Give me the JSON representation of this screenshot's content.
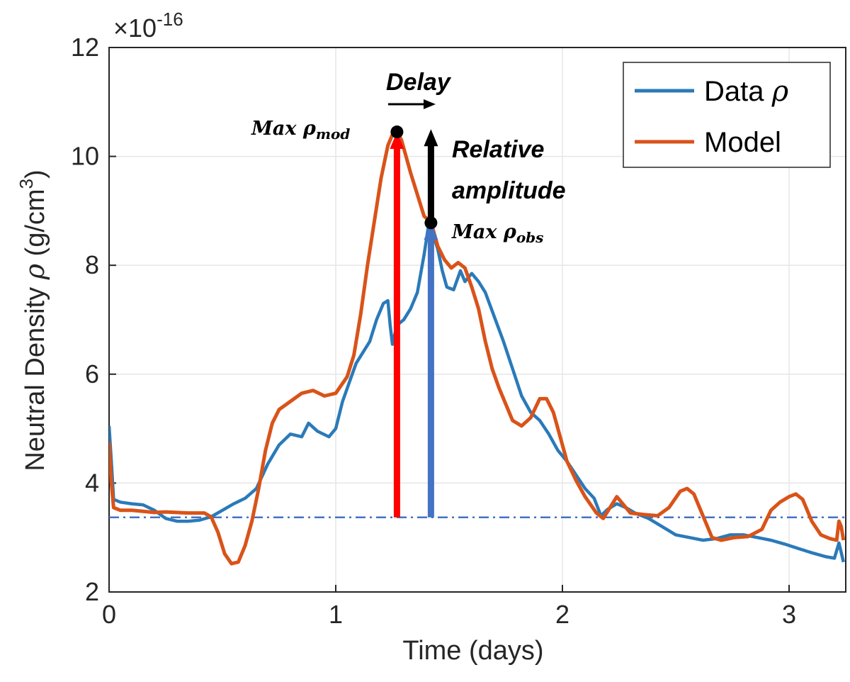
{
  "chart_data": {
    "type": "line",
    "title": "",
    "xlabel": "Time (days)",
    "ylabel": "Neutral Density ρ (g/cm³)",
    "ylabel_parts": {
      "main": "Neutral Density ",
      "rho": "ρ",
      "unit": " (g/cm",
      "exp": "3",
      "close": ")"
    },
    "exponent_label": {
      "base": "×10",
      "exp": "-16"
    },
    "xlim": [
      0,
      3.25
    ],
    "ylim": [
      2,
      12
    ],
    "x_ticks": [
      0,
      1,
      2,
      3
    ],
    "y_ticks": [
      2,
      4,
      6,
      8,
      10,
      12
    ],
    "grid": true,
    "legend_position": "top-right",
    "series": [
      {
        "name": "Data ρ",
        "label_text": "Data ",
        "label_symbol": "ρ",
        "color": "#2a7ab9",
        "points": [
          [
            0,
            5.05
          ],
          [
            0.01,
            4.4
          ],
          [
            0.02,
            3.7
          ],
          [
            0.05,
            3.65
          ],
          [
            0.1,
            3.62
          ],
          [
            0.15,
            3.6
          ],
          [
            0.2,
            3.5
          ],
          [
            0.25,
            3.35
          ],
          [
            0.3,
            3.3
          ],
          [
            0.35,
            3.3
          ],
          [
            0.4,
            3.32
          ],
          [
            0.45,
            3.38
          ],
          [
            0.5,
            3.5
          ],
          [
            0.55,
            3.62
          ],
          [
            0.6,
            3.72
          ],
          [
            0.65,
            3.9
          ],
          [
            0.7,
            4.35
          ],
          [
            0.75,
            4.7
          ],
          [
            0.8,
            4.9
          ],
          [
            0.85,
            4.85
          ],
          [
            0.88,
            5.1
          ],
          [
            0.92,
            4.95
          ],
          [
            0.97,
            4.85
          ],
          [
            1.0,
            5.0
          ],
          [
            1.03,
            5.5
          ],
          [
            1.06,
            5.85
          ],
          [
            1.09,
            6.2
          ],
          [
            1.12,
            6.4
          ],
          [
            1.15,
            6.6
          ],
          [
            1.18,
            7.0
          ],
          [
            1.21,
            7.3
          ],
          [
            1.23,
            7.35
          ],
          [
            1.24,
            6.9
          ],
          [
            1.25,
            6.55
          ],
          [
            1.27,
            6.9
          ],
          [
            1.3,
            7.0
          ],
          [
            1.33,
            7.2
          ],
          [
            1.36,
            7.5
          ],
          [
            1.39,
            8.2
          ],
          [
            1.41,
            8.75
          ],
          [
            1.43,
            8.55
          ],
          [
            1.45,
            8.3
          ],
          [
            1.47,
            7.9
          ],
          [
            1.49,
            7.6
          ],
          [
            1.52,
            7.55
          ],
          [
            1.55,
            7.9
          ],
          [
            1.57,
            7.7
          ],
          [
            1.6,
            7.85
          ],
          [
            1.63,
            7.7
          ],
          [
            1.66,
            7.5
          ],
          [
            1.7,
            7.05
          ],
          [
            1.74,
            6.6
          ],
          [
            1.78,
            6.1
          ],
          [
            1.82,
            5.6
          ],
          [
            1.86,
            5.3
          ],
          [
            1.9,
            5.15
          ],
          [
            1.94,
            4.9
          ],
          [
            1.98,
            4.6
          ],
          [
            2.02,
            4.4
          ],
          [
            2.06,
            4.15
          ],
          [
            2.1,
            3.9
          ],
          [
            2.14,
            3.72
          ],
          [
            2.17,
            3.4
          ],
          [
            2.2,
            3.52
          ],
          [
            2.24,
            3.62
          ],
          [
            2.28,
            3.55
          ],
          [
            2.32,
            3.45
          ],
          [
            2.38,
            3.35
          ],
          [
            2.44,
            3.2
          ],
          [
            2.5,
            3.05
          ],
          [
            2.56,
            3.0
          ],
          [
            2.62,
            2.95
          ],
          [
            2.68,
            2.98
          ],
          [
            2.74,
            3.05
          ],
          [
            2.8,
            3.05
          ],
          [
            2.86,
            3.0
          ],
          [
            2.92,
            2.95
          ],
          [
            2.98,
            2.88
          ],
          [
            3.04,
            2.8
          ],
          [
            3.1,
            2.72
          ],
          [
            3.16,
            2.65
          ],
          [
            3.2,
            2.62
          ],
          [
            3.22,
            2.9
          ],
          [
            3.24,
            2.55
          ]
        ]
      },
      {
        "name": "Model",
        "label_text": "Model",
        "color": "#d95319",
        "points": [
          [
            0,
            4.75
          ],
          [
            0.01,
            4.0
          ],
          [
            0.02,
            3.55
          ],
          [
            0.05,
            3.5
          ],
          [
            0.1,
            3.5
          ],
          [
            0.15,
            3.48
          ],
          [
            0.2,
            3.46
          ],
          [
            0.25,
            3.47
          ],
          [
            0.3,
            3.46
          ],
          [
            0.35,
            3.45
          ],
          [
            0.42,
            3.45
          ],
          [
            0.45,
            3.38
          ],
          [
            0.48,
            3.1
          ],
          [
            0.51,
            2.7
          ],
          [
            0.54,
            2.52
          ],
          [
            0.57,
            2.55
          ],
          [
            0.6,
            2.85
          ],
          [
            0.63,
            3.3
          ],
          [
            0.66,
            3.9
          ],
          [
            0.69,
            4.6
          ],
          [
            0.72,
            5.1
          ],
          [
            0.75,
            5.35
          ],
          [
            0.8,
            5.5
          ],
          [
            0.85,
            5.65
          ],
          [
            0.9,
            5.7
          ],
          [
            0.95,
            5.6
          ],
          [
            1.0,
            5.65
          ],
          [
            1.05,
            5.95
          ],
          [
            1.08,
            6.35
          ],
          [
            1.11,
            7.1
          ],
          [
            1.14,
            8.0
          ],
          [
            1.17,
            8.8
          ],
          [
            1.2,
            9.6
          ],
          [
            1.23,
            10.2
          ],
          [
            1.25,
            10.4
          ],
          [
            1.27,
            10.45
          ],
          [
            1.29,
            10.3
          ],
          [
            1.31,
            10.0
          ],
          [
            1.33,
            9.7
          ],
          [
            1.36,
            9.3
          ],
          [
            1.39,
            8.9
          ],
          [
            1.42,
            8.8
          ],
          [
            1.45,
            8.35
          ],
          [
            1.48,
            8.1
          ],
          [
            1.51,
            7.95
          ],
          [
            1.54,
            8.05
          ],
          [
            1.57,
            7.95
          ],
          [
            1.6,
            7.6
          ],
          [
            1.63,
            7.2
          ],
          [
            1.66,
            6.6
          ],
          [
            1.69,
            6.1
          ],
          [
            1.72,
            5.75
          ],
          [
            1.75,
            5.45
          ],
          [
            1.78,
            5.15
          ],
          [
            1.82,
            5.05
          ],
          [
            1.86,
            5.2
          ],
          [
            1.9,
            5.55
          ],
          [
            1.93,
            5.55
          ],
          [
            1.96,
            5.3
          ],
          [
            1.99,
            4.85
          ],
          [
            2.02,
            4.4
          ],
          [
            2.06,
            4.05
          ],
          [
            2.1,
            3.75
          ],
          [
            2.15,
            3.45
          ],
          [
            2.18,
            3.35
          ],
          [
            2.21,
            3.55
          ],
          [
            2.24,
            3.75
          ],
          [
            2.27,
            3.6
          ],
          [
            2.3,
            3.45
          ],
          [
            2.36,
            3.42
          ],
          [
            2.42,
            3.4
          ],
          [
            2.47,
            3.55
          ],
          [
            2.52,
            3.85
          ],
          [
            2.55,
            3.9
          ],
          [
            2.58,
            3.8
          ],
          [
            2.62,
            3.4
          ],
          [
            2.66,
            3.0
          ],
          [
            2.7,
            2.95
          ],
          [
            2.76,
            3.0
          ],
          [
            2.82,
            3.02
          ],
          [
            2.88,
            3.15
          ],
          [
            2.92,
            3.5
          ],
          [
            2.96,
            3.65
          ],
          [
            3.0,
            3.75
          ],
          [
            3.03,
            3.8
          ],
          [
            3.06,
            3.7
          ],
          [
            3.1,
            3.3
          ],
          [
            3.14,
            3.05
          ],
          [
            3.18,
            2.98
          ],
          [
            3.21,
            2.95
          ],
          [
            3.22,
            3.3
          ],
          [
            3.23,
            3.2
          ],
          [
            3.24,
            2.95
          ]
        ]
      }
    ],
    "baseline": {
      "y": 3.37,
      "color": "#4472c4",
      "style": "dash-dot"
    },
    "arrows": [
      {
        "name": "model-peak-arrow",
        "x": 1.27,
        "y_from": 3.37,
        "y_to": 10.45,
        "color": "#ff0000"
      },
      {
        "name": "data-peak-arrow",
        "x": 1.42,
        "y_from": 3.37,
        "y_to": 8.78,
        "color": "#4472c4"
      },
      {
        "name": "relative-amplitude-arrow",
        "x": 1.42,
        "y_from": 8.78,
        "y_to": 10.5,
        "color": "#000000"
      }
    ],
    "markers": [
      {
        "name": "max-model-marker",
        "x": 1.27,
        "y": 10.45
      },
      {
        "name": "max-obs-marker",
        "x": 1.42,
        "y": 8.78
      }
    ],
    "annotations": {
      "delay": "Delay",
      "relative_amplitude_line1": "Relative",
      "relative_amplitude_line2": "amplitude",
      "max_mod_prefix": "Max ρ",
      "max_mod_sub": "mod",
      "max_obs_prefix": "Max ρ",
      "max_obs_sub": "obs"
    }
  }
}
